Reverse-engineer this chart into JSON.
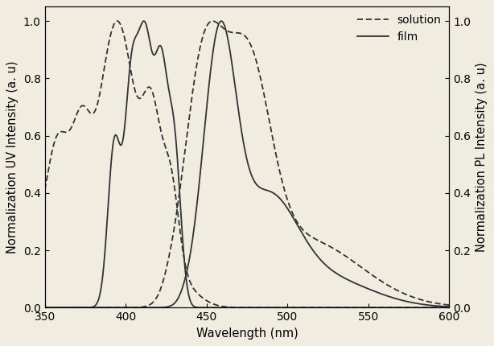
{
  "xlabel": "Wavelength (nm)",
  "ylabel_left": "Normalization UV Intensity (a. u)",
  "ylabel_right": "Normalization PL Intensity (a. u)",
  "xlim": [
    350,
    600
  ],
  "ylim": [
    0.0,
    1.05
  ],
  "background_color": "#f0ece0",
  "line_color": "#333333",
  "axis_fontsize": 10.5,
  "tick_fontsize": 10
}
